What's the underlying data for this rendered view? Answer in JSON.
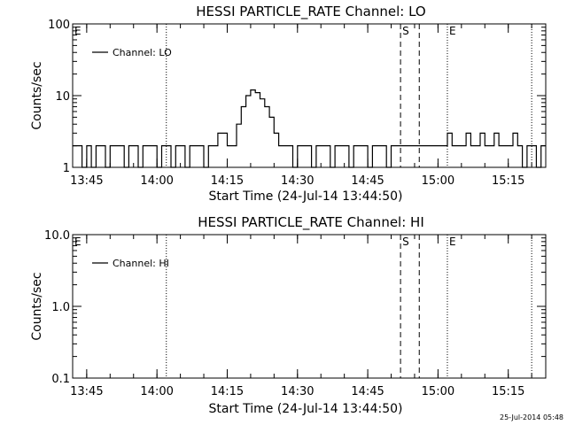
{
  "timestamp": "25-Jul-2014 05:48",
  "chart_data": [
    {
      "type": "line",
      "title": "HESSI PARTICLE_RATE Channel: LO",
      "xlabel": "Start Time (24-Jul-14 13:44:50)",
      "ylabel": "Counts/sec",
      "xlim": [
        "13:42",
        "15:23"
      ],
      "ylim": [
        1,
        100
      ],
      "log_y": true,
      "grid": false,
      "legend_position": "top-left",
      "x_ticks": [
        "13:45",
        "14:00",
        "14:15",
        "14:30",
        "14:45",
        "15:00",
        "15:15"
      ],
      "y_ticks": [
        "1",
        "10",
        "100"
      ],
      "event_markers": [
        {
          "label": "E",
          "time": "13:42",
          "style": "dotted"
        },
        {
          "label": "",
          "time": "14:02",
          "style": "dotted"
        },
        {
          "label": "S",
          "time": "14:52",
          "style": "dashed"
        },
        {
          "label": "",
          "time": "14:56",
          "style": "dashed"
        },
        {
          "label": "E",
          "time": "15:02",
          "style": "dotted"
        },
        {
          "label": "",
          "time": "15:20",
          "style": "dotted"
        }
      ],
      "series": [
        {
          "name": "Channel: LO",
          "x": [
            "13:42",
            "13:43",
            "13:44",
            "13:45",
            "13:46",
            "13:47",
            "13:48",
            "13:49",
            "13:50",
            "13:51",
            "13:52",
            "13:53",
            "13:54",
            "13:55",
            "13:56",
            "13:57",
            "13:58",
            "13:59",
            "14:00",
            "14:01",
            "14:02",
            "14:03",
            "14:04",
            "14:05",
            "14:06",
            "14:07",
            "14:08",
            "14:09",
            "14:10",
            "14:11",
            "14:12",
            "14:13",
            "14:14",
            "14:15",
            "14:16",
            "14:17",
            "14:18",
            "14:19",
            "14:20",
            "14:21",
            "14:22",
            "14:23",
            "14:24",
            "14:25",
            "14:26",
            "14:27",
            "14:28",
            "14:29",
            "14:30",
            "14:31",
            "14:32",
            "14:33",
            "14:34",
            "14:35",
            "14:36",
            "14:37",
            "14:38",
            "14:39",
            "14:40",
            "14:41",
            "14:42",
            "14:43",
            "14:44",
            "14:45",
            "14:46",
            "14:47",
            "14:48",
            "14:49",
            "14:50",
            "14:51",
            "14:52",
            "14:53",
            "14:54",
            "14:55",
            "14:56",
            "14:57",
            "14:58",
            "14:59",
            "15:00",
            "15:01",
            "15:02",
            "15:03",
            "15:04",
            "15:05",
            "15:06",
            "15:07",
            "15:08",
            "15:09",
            "15:10",
            "15:11",
            "15:12",
            "15:13",
            "15:14",
            "15:15",
            "15:16",
            "15:17",
            "15:18",
            "15:19",
            "15:20",
            "15:21",
            "15:22"
          ],
          "values": [
            2,
            2,
            1,
            2,
            1,
            2,
            2,
            1,
            2,
            2,
            2,
            1,
            2,
            2,
            1,
            2,
            2,
            2,
            1,
            2,
            2,
            1,
            2,
            2,
            1,
            2,
            2,
            2,
            1,
            2,
            2,
            3,
            3,
            2,
            2,
            4,
            7,
            10,
            12,
            11,
            9,
            7,
            5,
            3,
            2,
            2,
            2,
            1,
            2,
            2,
            2,
            1,
            2,
            2,
            2,
            1,
            2,
            2,
            2,
            1,
            2,
            2,
            2,
            1,
            2,
            2,
            2,
            1,
            2,
            2,
            2,
            2,
            2,
            2,
            2,
            2,
            2,
            2,
            2,
            2,
            3,
            2,
            2,
            2,
            3,
            2,
            2,
            3,
            2,
            2,
            3,
            2,
            2,
            2,
            3,
            2,
            1,
            2,
            2,
            1,
            2
          ]
        }
      ]
    },
    {
      "type": "line",
      "title": "HESSI PARTICLE_RATE Channel: HI",
      "xlabel": "Start Time (24-Jul-14 13:44:50)",
      "ylabel": "Counts/sec",
      "xlim": [
        "13:42",
        "15:23"
      ],
      "ylim": [
        0.1,
        10.0
      ],
      "log_y": true,
      "grid": false,
      "legend_position": "top-left",
      "x_ticks": [
        "13:45",
        "14:00",
        "14:15",
        "14:30",
        "14:45",
        "15:00",
        "15:15"
      ],
      "y_ticks": [
        "0.1",
        "1.0",
        "10.0"
      ],
      "event_markers": [
        {
          "label": "E",
          "time": "13:42",
          "style": "dotted"
        },
        {
          "label": "",
          "time": "14:02",
          "style": "dotted"
        },
        {
          "label": "S",
          "time": "14:52",
          "style": "dashed"
        },
        {
          "label": "",
          "time": "14:56",
          "style": "dashed"
        },
        {
          "label": "E",
          "time": "15:02",
          "style": "dotted"
        },
        {
          "label": "",
          "time": "15:20",
          "style": "dotted"
        }
      ],
      "series": [
        {
          "name": "Channel: HI",
          "x": [],
          "values": []
        }
      ]
    }
  ]
}
